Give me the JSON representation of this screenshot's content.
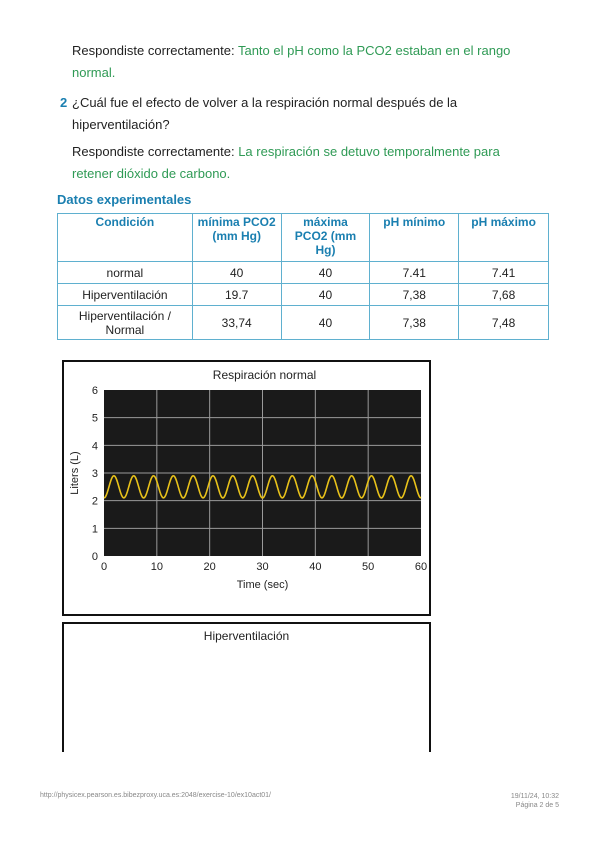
{
  "feedback1": {
    "prefix": "Respondiste correctamente: ",
    "answer_line1": "Tanto el pH como la PCO2 estaban en el rango",
    "answer_line2": "normal."
  },
  "question2": {
    "number": "2",
    "text_line1": "¿Cuál fue el efecto de volver a la respiración normal después de la",
    "text_line2": "hiperventilación?"
  },
  "feedback2": {
    "prefix": "Respondiste correctamente: ",
    "answer_line1": "La respiración se detuvo temporalmente para",
    "answer_line2": "retener dióxido de carbono."
  },
  "data_section": {
    "title": "Datos experimentales",
    "headers": [
      "Condición",
      "mínima PCO2 (mm Hg)",
      "máxima PCO2 (mm Hg)",
      "pH mínimo",
      "pH máximo"
    ],
    "rows": [
      [
        "normal",
        "40",
        "40",
        "7.41",
        "7.41"
      ],
      [
        "Hiperventilación",
        "19.7",
        "40",
        "7,38",
        "7,68"
      ],
      [
        "Hiperventilación / Normal",
        "33,74",
        "40",
        "7,38",
        "7,48"
      ]
    ]
  },
  "chart_data": [
    {
      "type": "line",
      "title": "Respiración normal",
      "xlabel": "Time (sec)",
      "ylabel": "Liters (L)",
      "xlim": [
        0,
        60
      ],
      "ylim": [
        0,
        6
      ],
      "x_ticks": [
        "0",
        "10",
        "20",
        "30",
        "40",
        "50",
        "60"
      ],
      "y_ticks": [
        "0",
        "1",
        "2",
        "3",
        "4",
        "5",
        "6"
      ],
      "grid": true,
      "background": "#1a1a1a",
      "line_color": "#e8c21a",
      "series": [
        {
          "waveform": "sine",
          "center": 2.5,
          "amplitude": 0.4,
          "period_sec": 3.75
        }
      ]
    },
    {
      "type": "line",
      "title": "Hiperventilación"
    }
  ],
  "footer": {
    "url": "http://physicex.pearson.es.bibezproxy.uca.es:2048/exercise-10/ex10act01/",
    "datetime": "19/11/24, 10:32",
    "page": "Página 2 de 5"
  }
}
